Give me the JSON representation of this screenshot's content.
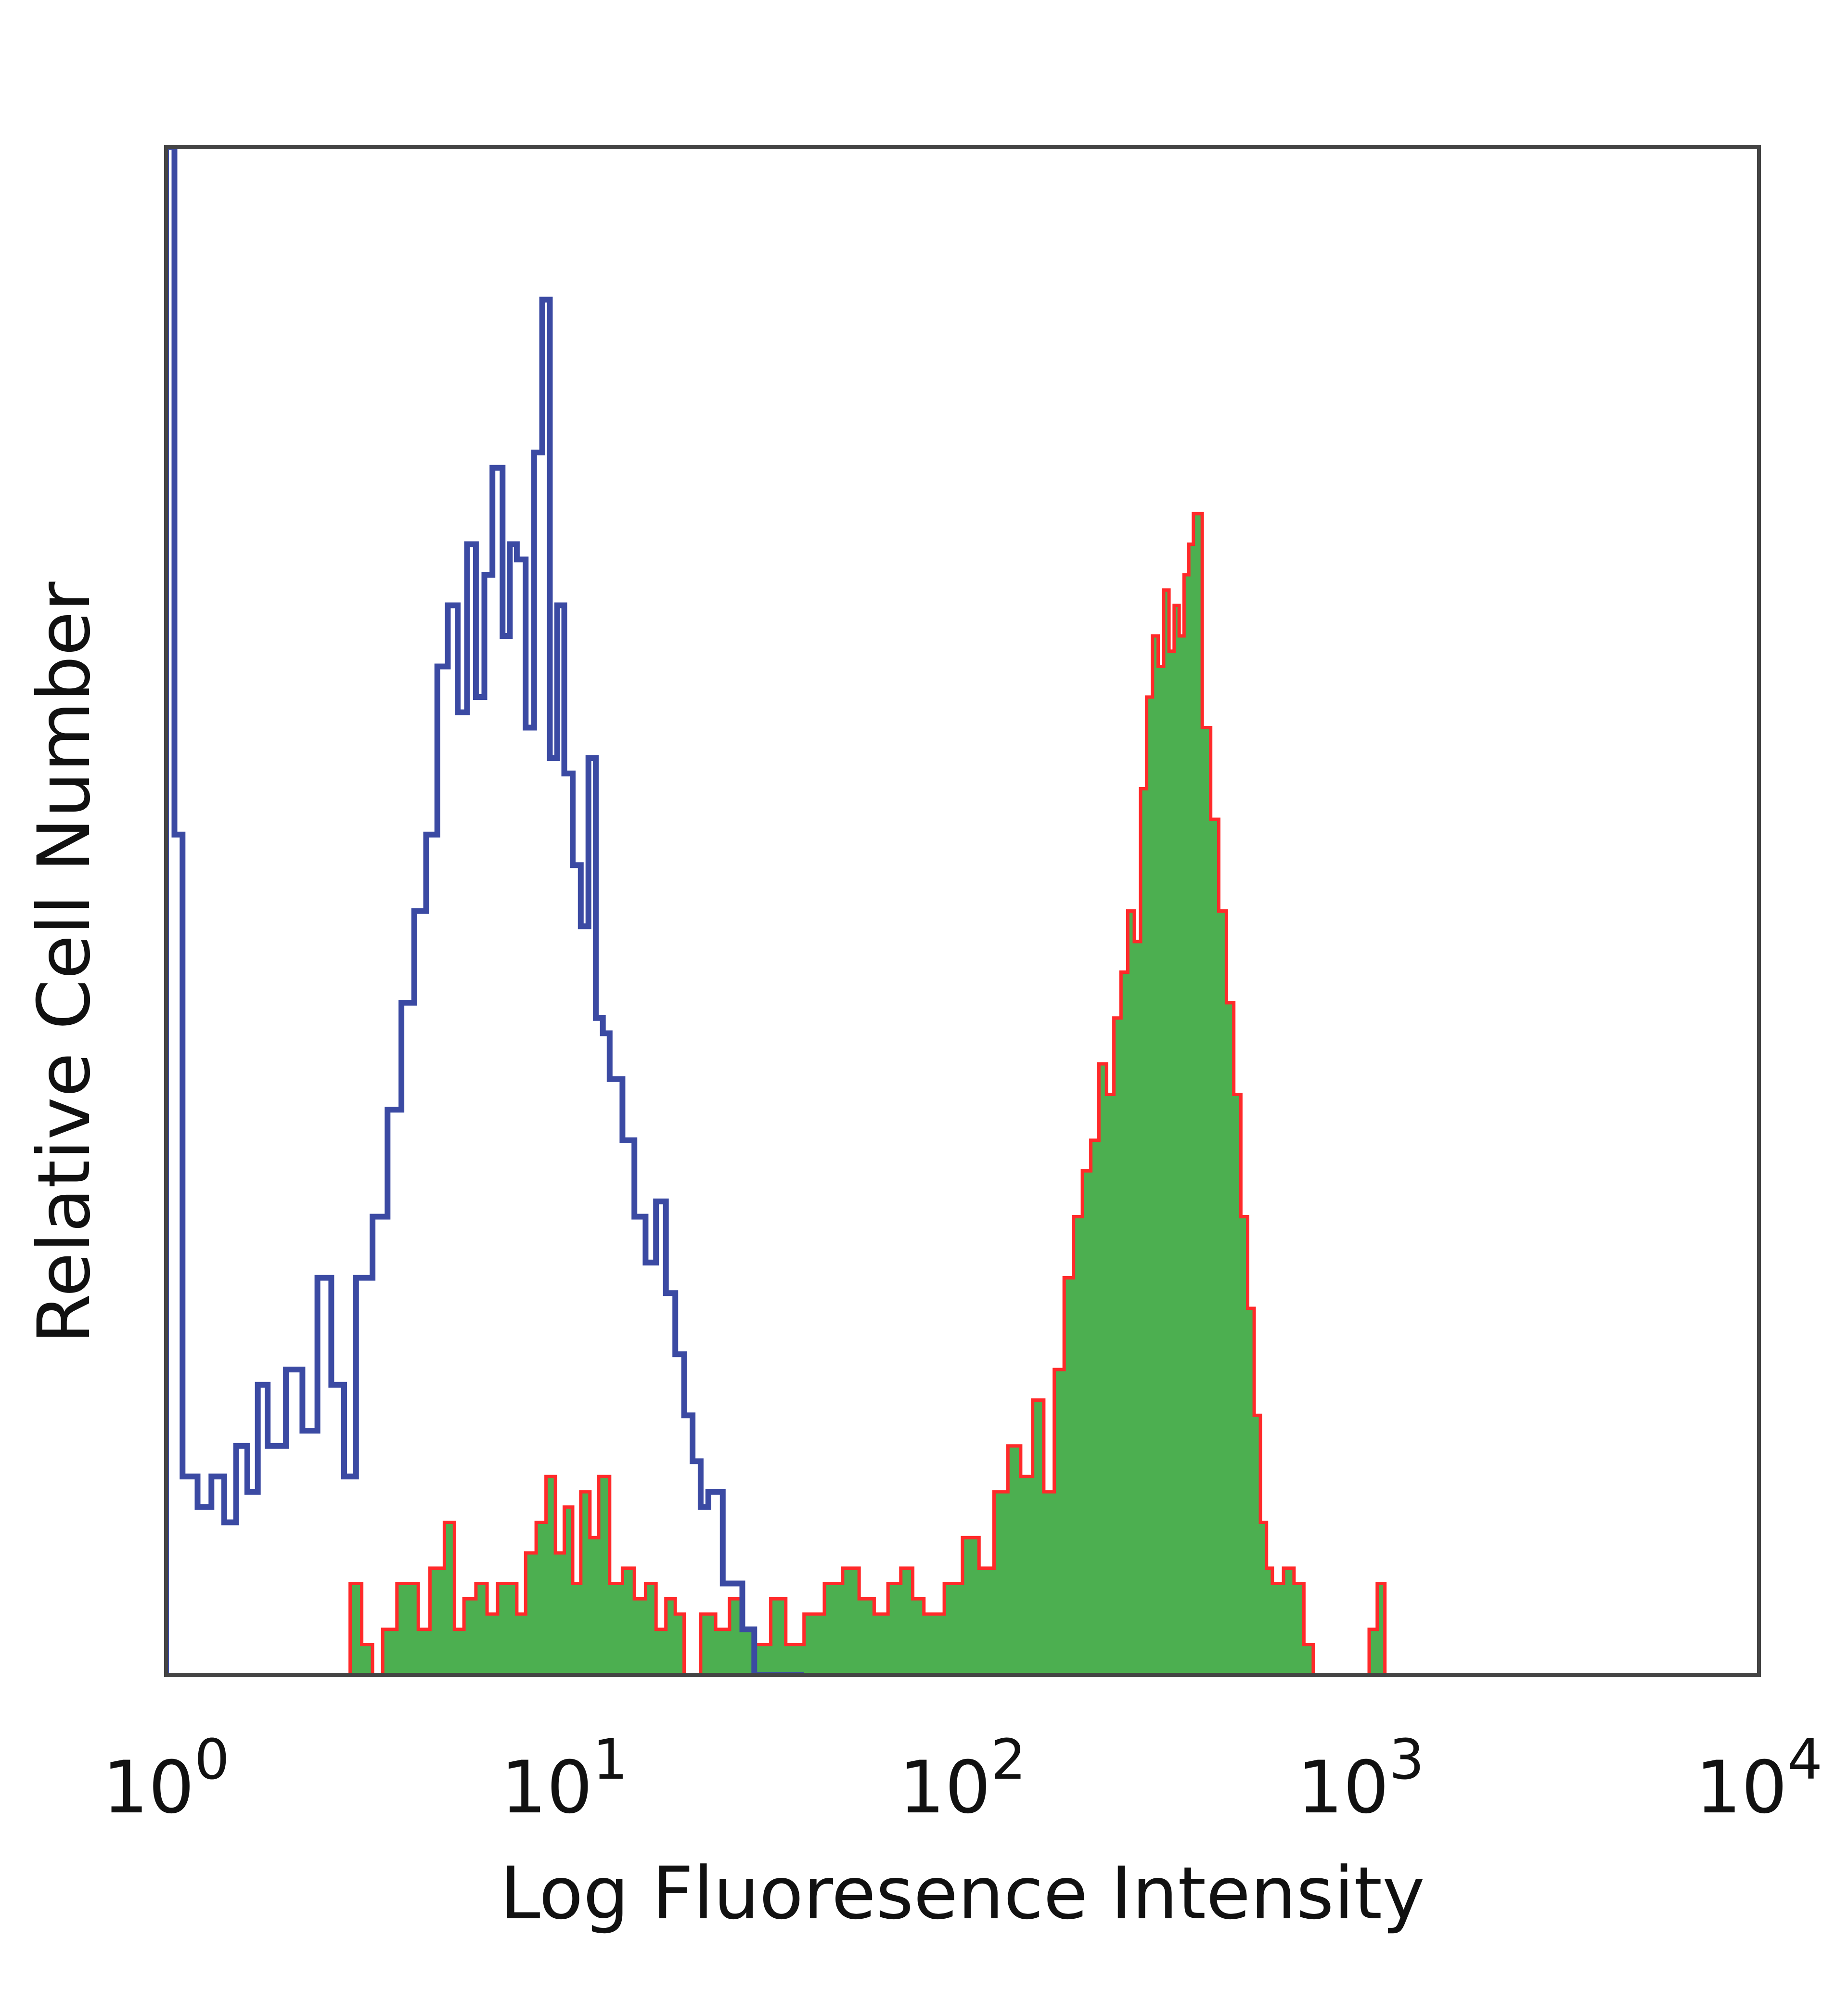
{
  "chart_data": {
    "type": "area",
    "xlabel": "Log Fluoresence Intensity",
    "ylabel": "Relative Cell Number",
    "x_scale": "log",
    "xlim": [
      1,
      10000
    ],
    "ylim": [
      0,
      1.0
    ],
    "x_ticks": [
      {
        "value": 1,
        "base": "10",
        "exp": "0"
      },
      {
        "value": 10,
        "base": "10",
        "exp": "1"
      },
      {
        "value": 100,
        "base": "10",
        "exp": "2"
      },
      {
        "value": 1000,
        "base": "10",
        "exp": "3"
      },
      {
        "value": 10000,
        "base": "10",
        "exp": "4"
      }
    ],
    "grid": false,
    "colors": {
      "unstained_line": "#3b4aa3",
      "stained_fill": "#4caf50",
      "stained_outline": "#ff2a2a"
    },
    "series": [
      {
        "style": "line",
        "color": "#3b4aa3",
        "x": [
          1.0,
          1.05,
          1.1,
          1.2,
          1.3,
          1.4,
          1.5,
          1.6,
          1.7,
          1.8,
          2.0,
          2.2,
          2.4,
          2.6,
          2.8,
          3.0,
          3.3,
          3.6,
          3.9,
          4.2,
          4.5,
          4.8,
          5.1,
          5.4,
          5.7,
          6.0,
          6.3,
          6.6,
          7.0,
          7.3,
          7.6,
          8.0,
          8.4,
          8.8,
          9.2,
          9.6,
          10.0,
          10.5,
          11.0,
          11.5,
          12.0,
          12.5,
          13.0,
          14.0,
          15.0,
          16.0,
          17.0,
          18.0,
          19.0,
          20.0,
          21.0,
          22.0,
          23.0,
          25.0,
          28.0,
          30.0,
          35.0,
          40.0
        ],
        "y": [
          1.0,
          0.55,
          0.13,
          0.11,
          0.13,
          0.1,
          0.15,
          0.12,
          0.19,
          0.15,
          0.2,
          0.16,
          0.26,
          0.19,
          0.13,
          0.26,
          0.3,
          0.37,
          0.44,
          0.5,
          0.55,
          0.66,
          0.7,
          0.63,
          0.74,
          0.64,
          0.72,
          0.79,
          0.68,
          0.74,
          0.73,
          0.62,
          0.8,
          0.9,
          0.6,
          0.7,
          0.59,
          0.53,
          0.49,
          0.6,
          0.43,
          0.42,
          0.39,
          0.35,
          0.3,
          0.27,
          0.31,
          0.25,
          0.21,
          0.17,
          0.14,
          0.11,
          0.12,
          0.06,
          0.03,
          0.0,
          0.0,
          0.0
        ]
      },
      {
        "style": "filled",
        "color": "#4caf50",
        "x": [
          1.0,
          2.8,
          2.9,
          3.1,
          3.3,
          3.5,
          3.8,
          4.0,
          4.3,
          4.6,
          5.0,
          5.3,
          5.6,
          6.0,
          6.4,
          6.8,
          7.2,
          7.6,
          8.0,
          8.5,
          9.0,
          9.5,
          10.0,
          10.5,
          11.0,
          11.6,
          12.2,
          13.0,
          14.0,
          15.0,
          16.0,
          17.0,
          18.0,
          19.0,
          20.0,
          22.0,
          24.0,
          26.0,
          28.0,
          30.0,
          33.0,
          36.0,
          40.0,
          45.0,
          50.0,
          55.0,
          60.0,
          65.0,
          70.0,
          75.0,
          80.0,
          90.0,
          100.0,
          110.0,
          120.0,
          130.0,
          140.0,
          150.0,
          160.0,
          170.0,
          180.0,
          190.0,
          200.0,
          210.0,
          220.0,
          230.0,
          240.0,
          250.0,
          260.0,
          270.0,
          280.0,
          290.0,
          300.0,
          310.0,
          320.0,
          330.0,
          340.0,
          350.0,
          360.0,
          370.0,
          380.0,
          390.0,
          400.0,
          420.0,
          440.0,
          460.0,
          480.0,
          500.0,
          520.0,
          540.0,
          560.0,
          580.0,
          600.0,
          640.0,
          680.0,
          720.0,
          760.0,
          800.0,
          900.0,
          1000.0,
          1050.0,
          1100.0,
          1150.0
        ],
        "y": [
          0.0,
          0.0,
          0.06,
          0.02,
          0.0,
          0.03,
          0.06,
          0.06,
          0.03,
          0.07,
          0.1,
          0.03,
          0.05,
          0.06,
          0.04,
          0.06,
          0.06,
          0.04,
          0.08,
          0.1,
          0.13,
          0.08,
          0.11,
          0.06,
          0.12,
          0.09,
          0.13,
          0.06,
          0.07,
          0.05,
          0.06,
          0.03,
          0.05,
          0.04,
          0.0,
          0.04,
          0.03,
          0.05,
          0.03,
          0.02,
          0.05,
          0.02,
          0.04,
          0.06,
          0.07,
          0.05,
          0.04,
          0.06,
          0.07,
          0.05,
          0.04,
          0.06,
          0.09,
          0.07,
          0.12,
          0.15,
          0.13,
          0.18,
          0.12,
          0.2,
          0.26,
          0.3,
          0.33,
          0.35,
          0.4,
          0.38,
          0.43,
          0.46,
          0.5,
          0.48,
          0.58,
          0.64,
          0.68,
          0.66,
          0.71,
          0.67,
          0.7,
          0.68,
          0.72,
          0.74,
          0.76,
          0.76,
          0.62,
          0.56,
          0.5,
          0.44,
          0.38,
          0.3,
          0.24,
          0.17,
          0.1,
          0.07,
          0.06,
          0.07,
          0.06,
          0.02,
          0.0,
          0.0,
          0.0,
          0.0,
          0.03,
          0.06,
          0.0
        ]
      }
    ]
  }
}
